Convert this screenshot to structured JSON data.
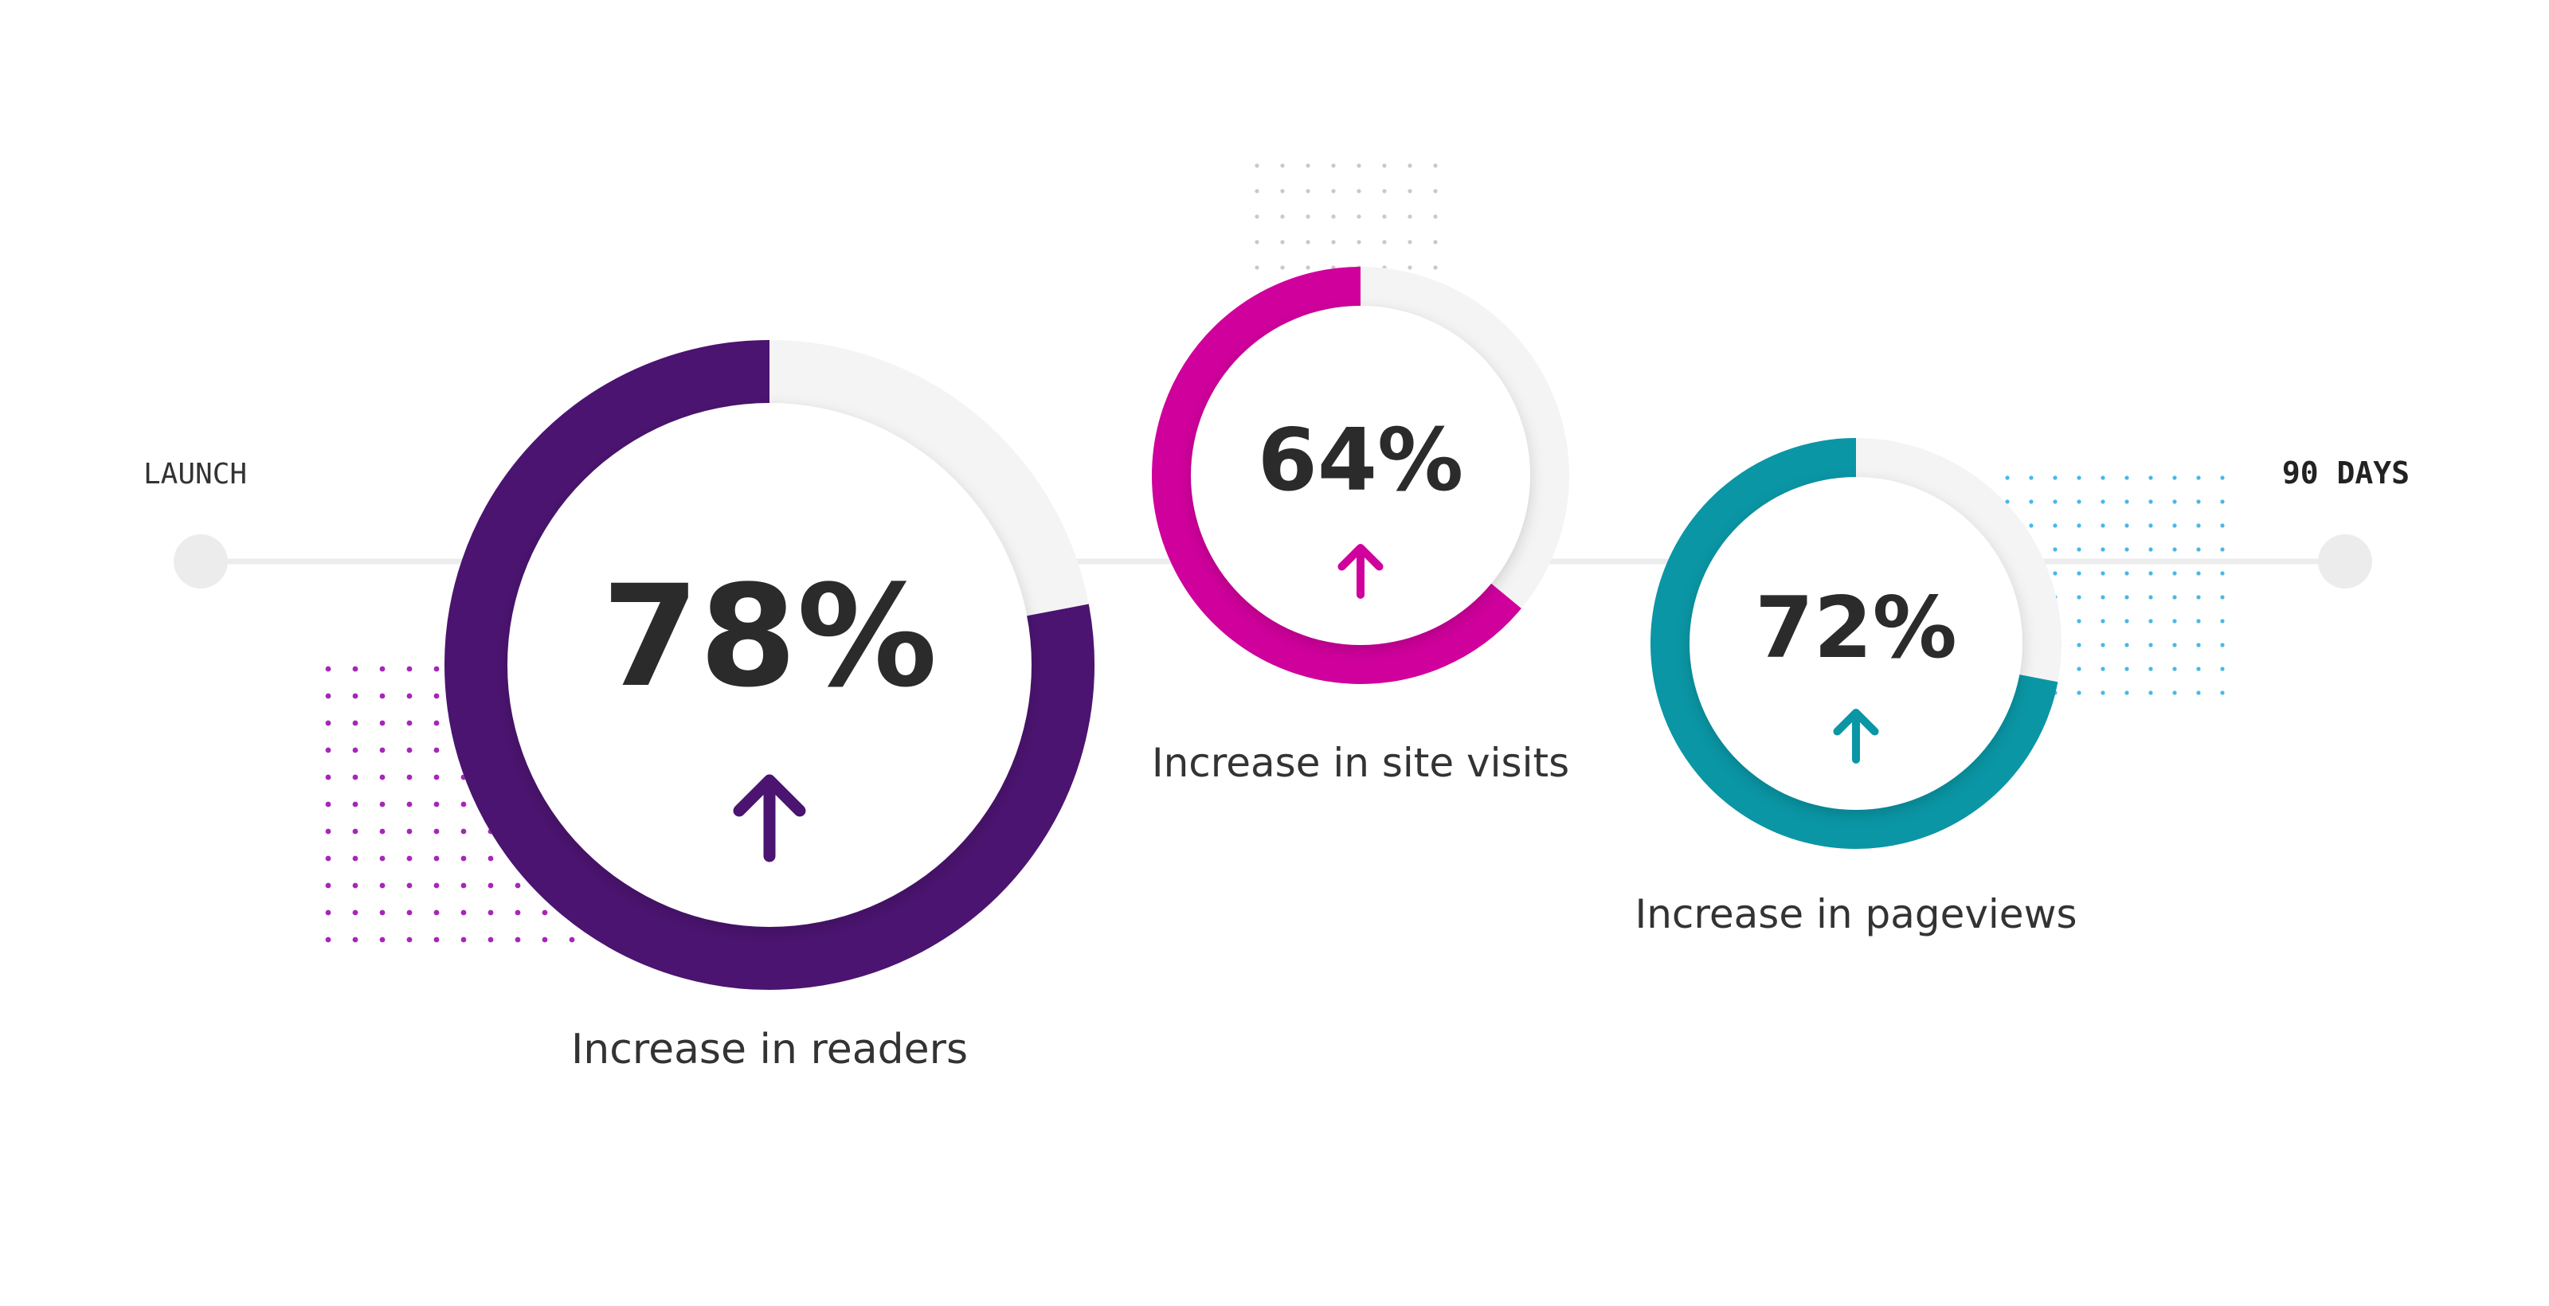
{
  "timeline": {
    "start_label": "LAUNCH",
    "end_label": "90 DAYS"
  },
  "chart_data": {
    "type": "donut",
    "items": [
      {
        "value": 78,
        "value_label": "78%",
        "caption": "Increase in readers",
        "color": "#4b1470",
        "dot_color": "#a626b8",
        "trend": "up"
      },
      {
        "value": 64,
        "value_label": "64%",
        "caption": "Increase in site visits",
        "color": "#d0009c",
        "dot_color": "#c9c9c9",
        "trend": "up"
      },
      {
        "value": 72,
        "value_label": "72%",
        "caption": "Increase in pageviews",
        "color": "#0a96a5",
        "dot_color": "#47b9e8",
        "trend": "up"
      }
    ],
    "track_color": "#f4f4f4"
  }
}
